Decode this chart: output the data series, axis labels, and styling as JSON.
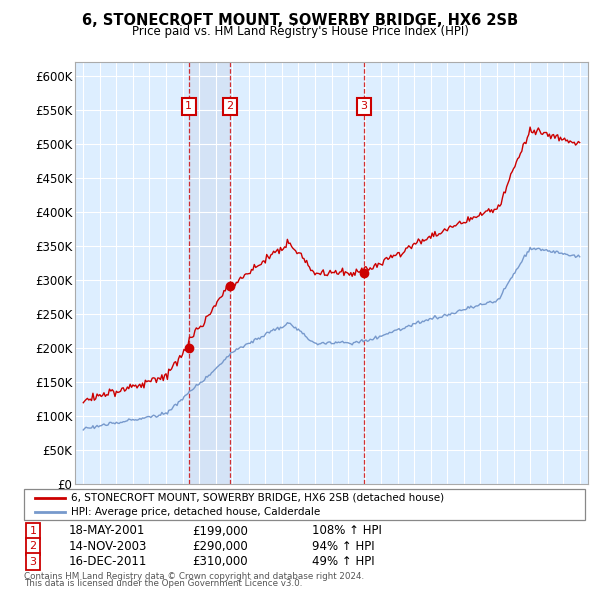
{
  "title": "6, STONECROFT MOUNT, SOWERBY BRIDGE, HX6 2SB",
  "subtitle": "Price paid vs. HM Land Registry's House Price Index (HPI)",
  "legend_line1": "6, STONECROFT MOUNT, SOWERBY BRIDGE, HX6 2SB (detached house)",
  "legend_line2": "HPI: Average price, detached house, Calderdale",
  "footer1": "Contains HM Land Registry data © Crown copyright and database right 2024.",
  "footer2": "This data is licensed under the Open Government Licence v3.0.",
  "sales": [
    {
      "num": 1,
      "date": "18-MAY-2001",
      "date_x": 2001.375,
      "price": 199000,
      "pct": "108%",
      "dir": "↑"
    },
    {
      "num": 2,
      "date": "14-NOV-2003",
      "date_x": 2003.875,
      "price": 290000,
      "pct": "94%",
      "dir": "↑"
    },
    {
      "num": 3,
      "date": "16-DEC-2011",
      "date_x": 2011.958,
      "price": 310000,
      "pct": "49%",
      "dir": "↑"
    }
  ],
  "ylim_min": 0,
  "ylim_max": 620000,
  "xmin": 1994.5,
  "xmax": 2025.5,
  "red_color": "#cc0000",
  "blue_color": "#7799cc",
  "plot_bg": "#ddeeff",
  "shade_color": "#ccd9ee",
  "grid_color": "#ffffff"
}
